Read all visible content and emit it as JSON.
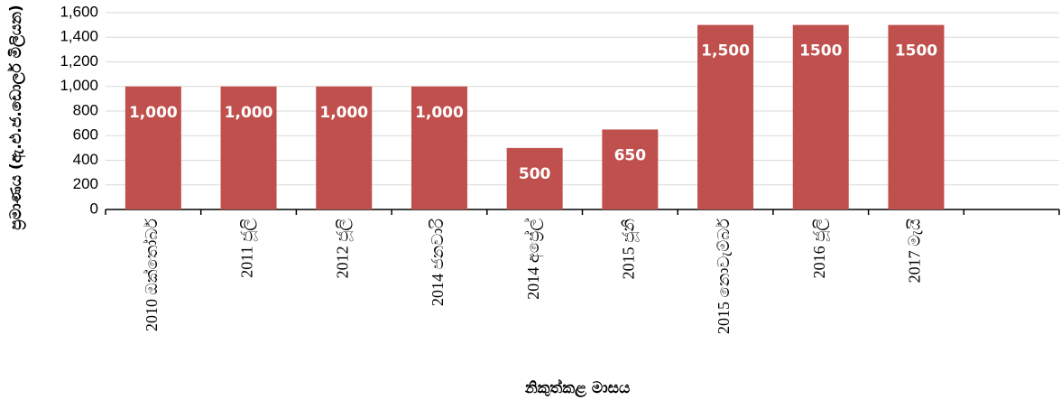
{
  "chart_data": {
    "type": "bar",
    "y_label": "ප්‍රමාණය (ඇ.එ.ජ.ඩොලර් මිලියන)",
    "x_label": "නිකුත්කළ මාසය",
    "categories": [
      "2010 ඔක්තෝබර්",
      "2011 ජූලි",
      "2012 ජූලි",
      "2014 ජනවාරි",
      "2014 අප්‍රේල්",
      "2015 ජූනි",
      "2015 නොවැම්බර්",
      "2016 ජූලි",
      "2017 මැයි",
      null
    ],
    "values": [
      1000,
      1000,
      1000,
      1000,
      500,
      650,
      1500,
      1500,
      1500,
      null
    ],
    "value_labels": [
      "1,000",
      "1,000",
      "1,000",
      "1,000",
      "500",
      "650",
      "1,500",
      "1500",
      "1500",
      null
    ],
    "color": "#c0504d",
    "ylim": [
      0,
      1600
    ],
    "yticks": [
      0,
      200,
      400,
      600,
      800,
      {
        "value": 1000,
        "label": "1,000"
      },
      {
        "value": 1200,
        "label": "1,200"
      },
      {
        "value": 1400,
        "label": "1,400"
      },
      {
        "value": 1600,
        "label": "1,600"
      }
    ],
    "grid": true
  }
}
